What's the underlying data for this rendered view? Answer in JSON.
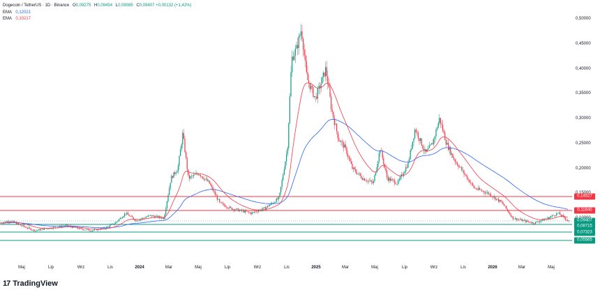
{
  "legend": {
    "symbol": "Dogecoin / TetherUS · 1D · Binance",
    "ohlc": [
      {
        "label": "O",
        "value": "0,09275"
      },
      {
        "label": "H",
        "value": "0,09454"
      },
      {
        "label": "L",
        "value": "0,09085"
      },
      {
        "label": "C",
        "value": "0,09407 +0,00132 (+1,42%)"
      }
    ],
    "ema_fast": {
      "label": "EMA",
      "value": "0,12021"
    },
    "ema_slow": {
      "label": "EMA",
      "value": "0,10217"
    }
  },
  "colors": {
    "up": "#089981",
    "down": "#f23645",
    "ema_fast": "#2962ff",
    "ema_slow": "#f23645",
    "resistance": "#f23645",
    "support": "#089981"
  },
  "price_axis": [
    "0,50000",
    "0,45000",
    "0,40000",
    "0,35000",
    "0,30000",
    "0,25000",
    "0,20000",
    "0,15000",
    "0,10000"
  ],
  "time_axis": [
    {
      "label": "Maj",
      "bold": false
    },
    {
      "label": "Lip",
      "bold": false
    },
    {
      "label": "Wrz",
      "bold": false
    },
    {
      "label": "Lis",
      "bold": false
    },
    {
      "label": "2024",
      "bold": true
    },
    {
      "label": "Mar",
      "bold": false
    },
    {
      "label": "Maj",
      "bold": false
    },
    {
      "label": "Lip",
      "bold": false
    },
    {
      "label": "Wrz",
      "bold": false
    },
    {
      "label": "Lis",
      "bold": false
    },
    {
      "label": "2025",
      "bold": true
    },
    {
      "label": "Mar",
      "bold": false
    },
    {
      "label": "Maj",
      "bold": false
    },
    {
      "label": "Lip",
      "bold": false
    },
    {
      "label": "Wrz",
      "bold": false
    },
    {
      "label": "Lis",
      "bold": false
    },
    {
      "label": "2026",
      "bold": true
    },
    {
      "label": "Mar",
      "bold": false
    },
    {
      "label": "Maj",
      "bold": false
    }
  ],
  "levels": [
    {
      "value": "0,14527",
      "kind": "resistance"
    },
    {
      "value": "0,11640",
      "kind": "resistance"
    },
    {
      "value": "0,09407",
      "kind": "current"
    },
    {
      "value": "0,08715",
      "kind": "support"
    },
    {
      "value": "0,07323",
      "kind": "support"
    },
    {
      "value": "0,05565",
      "kind": "support"
    }
  ],
  "brand": {
    "mark": "17",
    "name": "TradingView"
  }
}
